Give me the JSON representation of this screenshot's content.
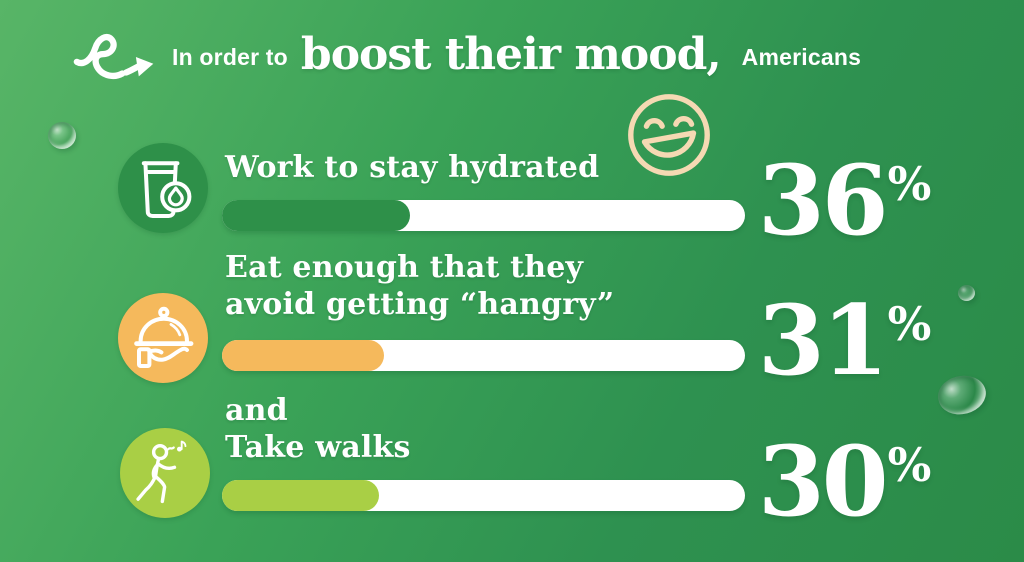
{
  "header": {
    "arrow_icon": "squiggle-arrow-icon",
    "prefix": "In order to",
    "emphasis": "boost their mood,",
    "suffix": "Americans"
  },
  "decor": {
    "smiley_icon": "laughing-smiley-icon",
    "smiley_color": "#f5d9b3",
    "droplet_icon": "water-droplet"
  },
  "colors": {
    "background_start": "#58b567",
    "background_end": "#2b8b48",
    "track": "#ffffff",
    "text": "#ffffff"
  },
  "items": [
    {
      "id": "hydrated",
      "icon": "water-glass-icon",
      "line1": "Work to stay hydrated",
      "line2": "",
      "line2_bold": "",
      "value": 36,
      "percent": "36",
      "percent_sign": "%",
      "color": "#2e9049"
    },
    {
      "id": "eat-enough",
      "icon": "food-tray-icon",
      "line1": "Eat enough that they",
      "line2": "avoid getting ",
      "line2_bold": "“hangry”",
      "value": 31,
      "percent": "31",
      "percent_sign": "%",
      "color": "#f5b95c"
    },
    {
      "id": "take-walks",
      "icon": "walking-person-icon",
      "line1": "and",
      "line2": "Take walks",
      "line2_bold": "",
      "value": 30,
      "percent": "30",
      "percent_sign": "%",
      "color": "#a9cf45"
    }
  ],
  "chart_data": {
    "type": "bar",
    "orientation": "horizontal",
    "title": "In order to boost their mood, Americans",
    "categories": [
      "Work to stay hydrated",
      "Eat enough that they avoid getting “hangry”",
      "and Take walks"
    ],
    "values": [
      36,
      31,
      30
    ],
    "unit": "%",
    "xlim": [
      0,
      100
    ],
    "bar_colors": [
      "#2e9049",
      "#f5b95c",
      "#a9cf45"
    ],
    "grid": false,
    "legend": false
  }
}
